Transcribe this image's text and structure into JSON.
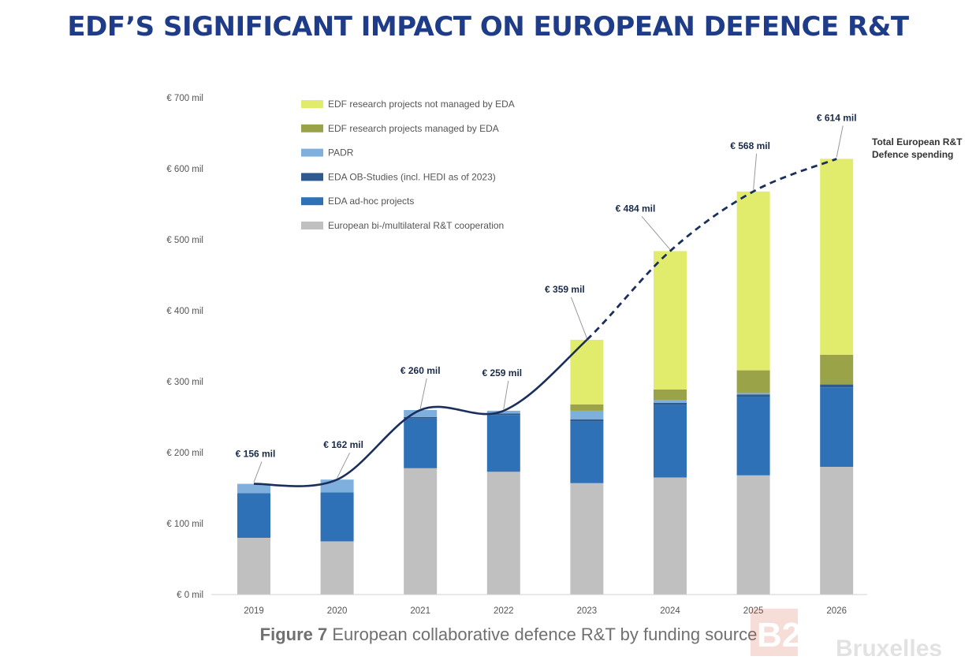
{
  "header": {
    "title": "EDF’S SIGNIFICANT IMPACT ON EUROPEAN DEFENCE R&T"
  },
  "caption": {
    "figure_label": "Figure 7",
    "text": " European collaborative defence R&T by funding source"
  },
  "watermark": {
    "text": "B2 Bruxelles"
  },
  "colors": {
    "edf_not_eda": "#e2ec6c",
    "edf_eda": "#9aa347",
    "padr": "#7fb0dd",
    "ob_studies": "#2e5a8f",
    "adhoc": "#2f71b6",
    "bilateral": "#c0c0c0",
    "total_line": "#1b2f5c"
  },
  "chart_data": {
    "type": "bar",
    "stacked": true,
    "categories": [
      "2019",
      "2020",
      "2021",
      "2022",
      "2023",
      "2024",
      "2025",
      "2026"
    ],
    "ylim": [
      0,
      700
    ],
    "yticks": [
      0,
      100,
      200,
      300,
      400,
      500,
      600,
      700
    ],
    "ytick_labels": [
      "€ 0 mil",
      "€ 100 mil",
      "€ 200 mil",
      "€ 300 mil",
      "€ 400 mil",
      "€ 500 mil",
      "€ 600 mil",
      "€ 700 mil"
    ],
    "grid": false,
    "legend_position": "top-left",
    "series": [
      {
        "name": "European bi-/multilateral R&T cooperation",
        "color_key": "bilateral",
        "values": [
          80,
          75,
          178,
          173,
          157,
          165,
          168,
          180
        ]
      },
      {
        "name": "EDA ad-hoc projects",
        "color_key": "adhoc",
        "values": [
          63,
          69,
          70,
          80,
          87,
          102,
          110,
          112
        ]
      },
      {
        "name": "EDA OB-Studies (incl. HEDI as of 2023)",
        "color_key": "ob_studies",
        "values": [
          0,
          0,
          2,
          2,
          3,
          3,
          4,
          4
        ]
      },
      {
        "name": "PADR",
        "color_key": "padr",
        "values": [
          13,
          18,
          10,
          4,
          12,
          4,
          2,
          0
        ]
      },
      {
        "name": "EDF research projects managed by EDA",
        "color_key": "edf_eda",
        "values": [
          0,
          0,
          0,
          0,
          9,
          15,
          32,
          42
        ]
      },
      {
        "name": "EDF research projects not managed by EDA",
        "color_key": "edf_not_eda",
        "values": [
          0,
          0,
          0,
          0,
          91,
          195,
          252,
          276
        ]
      }
    ],
    "legend_order": [
      "EDF research projects not managed by EDA",
      "EDF research projects managed by EDA",
      "PADR",
      "EDA OB-Studies (incl. HEDI as of 2023)",
      "EDA ad-hoc projects",
      "European bi-/multilateral R&T cooperation"
    ],
    "totals": [
      156,
      162,
      260,
      259,
      359,
      484,
      568,
      614
    ],
    "total_labels": [
      "€ 156 mil",
      "€ 162 mil",
      "€ 260 mil",
      "€ 259 mil",
      "€ 359 mil",
      "€ 484 mil",
      "€ 568 mil",
      "€ 614 mil"
    ],
    "total_line_label": [
      "Total European R&T",
      "Defence spending"
    ],
    "total_line_style": {
      "solid_through": "2023",
      "dashed_after": "2023"
    }
  }
}
